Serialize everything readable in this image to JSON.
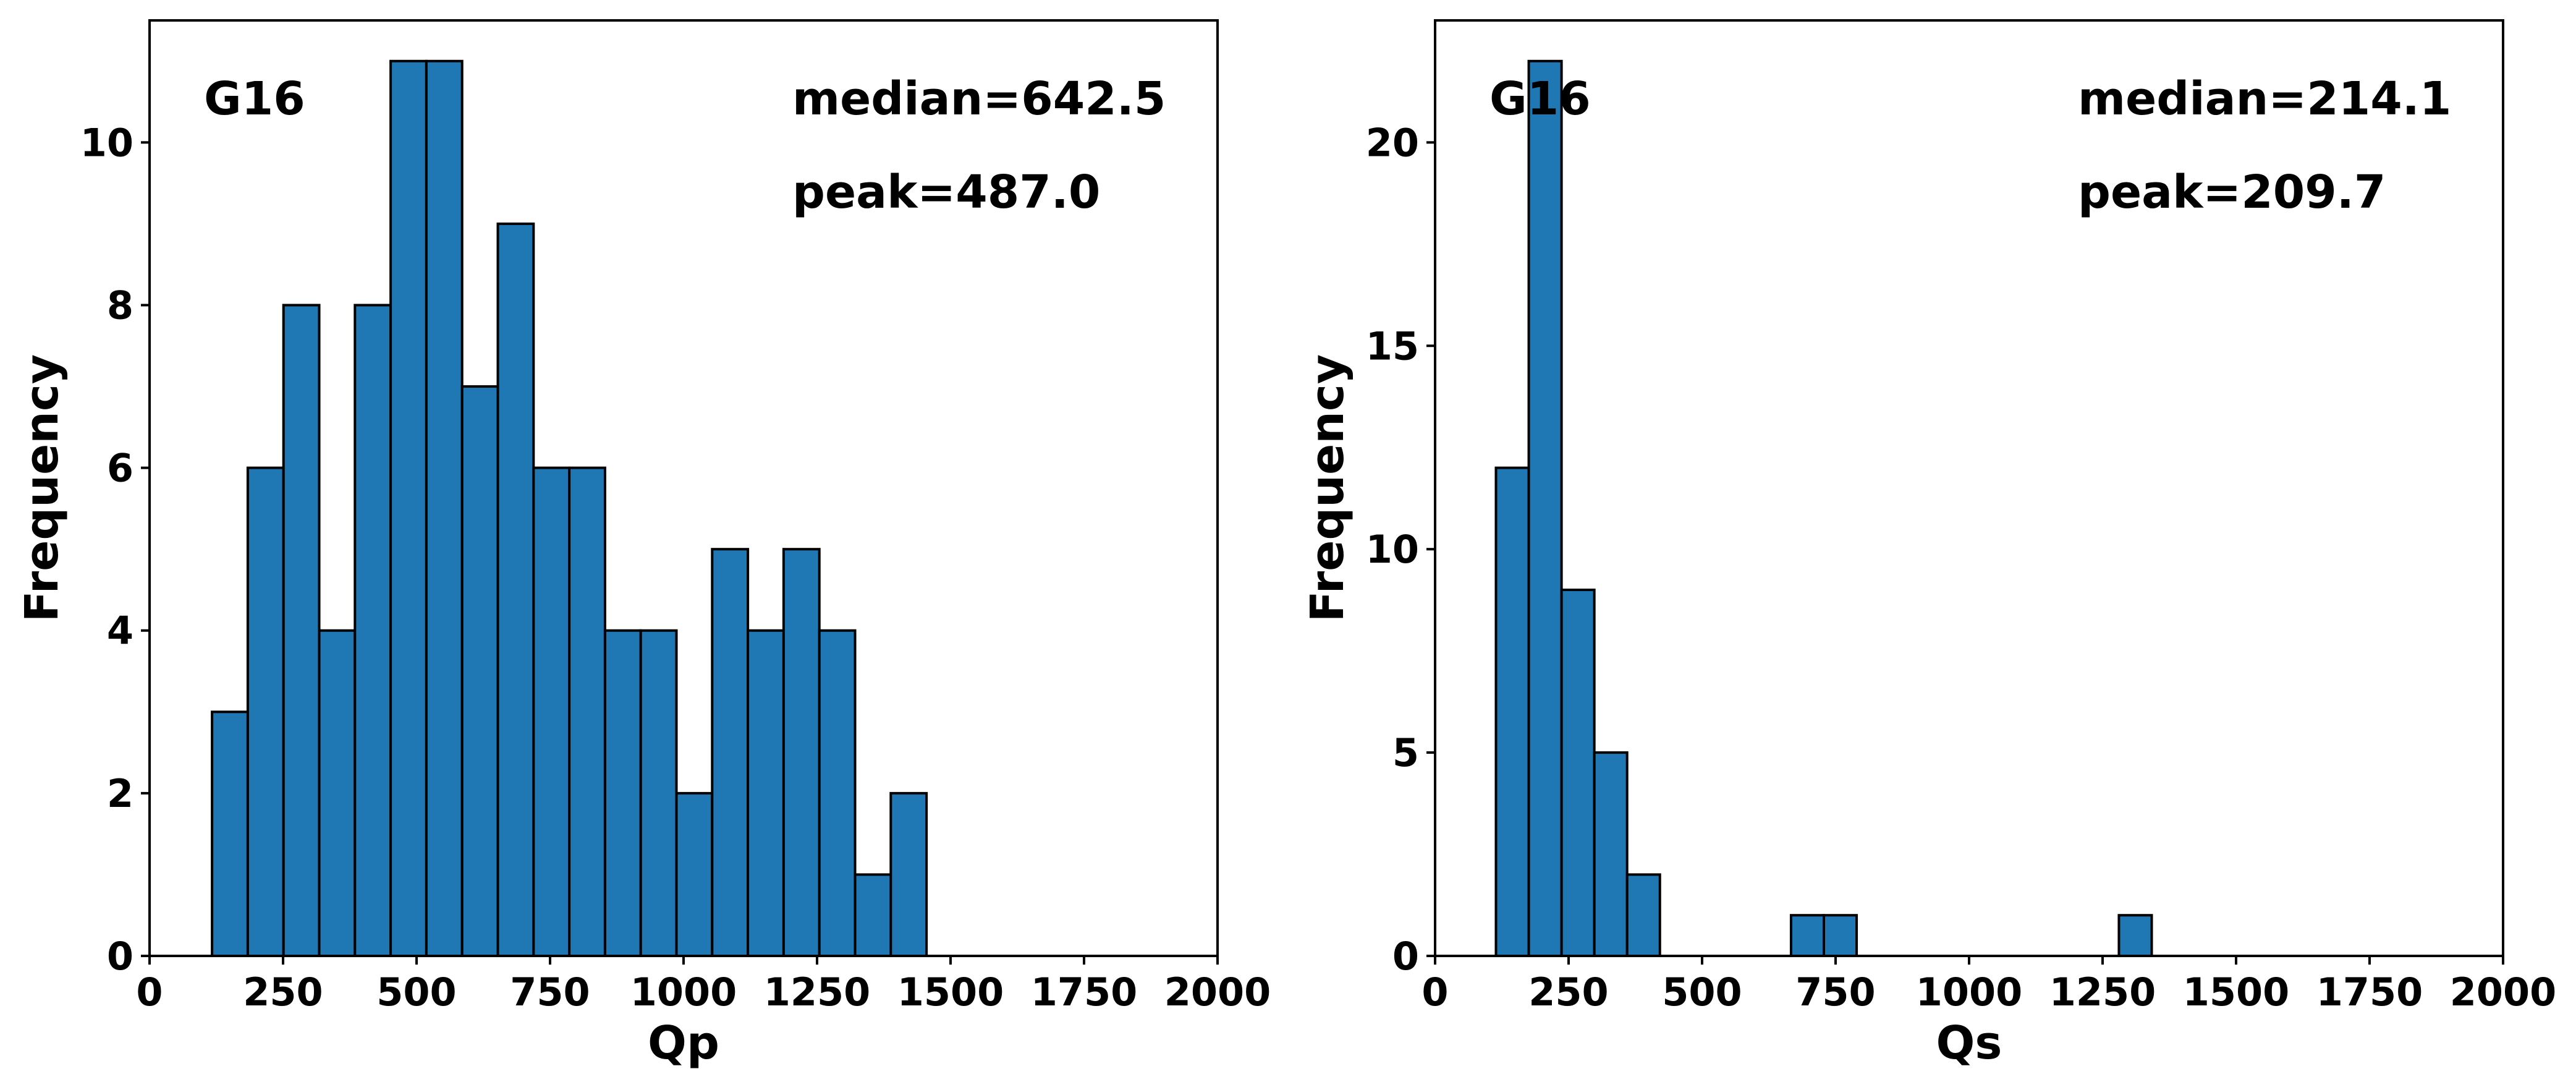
{
  "chart_data": [
    {
      "type": "bar",
      "histogram": true,
      "title": "",
      "xlabel": "Qp",
      "ylabel": "Frequency",
      "xlim": [
        0,
        2000
      ],
      "ylim": [
        0,
        11.5
      ],
      "xticks": [
        0,
        250,
        500,
        750,
        1000,
        1250,
        1500,
        1750,
        2000
      ],
      "yticks": [
        0,
        2,
        4,
        6,
        8,
        10
      ],
      "grid": false,
      "bar_color": "#1f77b4",
      "edge_color": "#000000",
      "bin_start": 117,
      "bin_width": 66.9,
      "values": [
        3,
        6,
        8,
        4,
        8,
        11,
        11,
        7,
        9,
        6,
        6,
        4,
        4,
        2,
        5,
        4,
        5,
        4,
        1,
        2
      ],
      "annotations": {
        "group": "G16",
        "median": "median=642.5",
        "peak": "peak=487.0"
      }
    },
    {
      "type": "bar",
      "histogram": true,
      "title": "",
      "xlabel": "Qs",
      "ylabel": "Frequency",
      "xlim": [
        0,
        2000
      ],
      "ylim": [
        0,
        23
      ],
      "xticks": [
        0,
        250,
        500,
        750,
        1000,
        1250,
        1500,
        1750,
        2000
      ],
      "yticks": [
        0,
        5,
        10,
        15,
        20
      ],
      "grid": false,
      "bar_color": "#1f77b4",
      "edge_color": "#000000",
      "bin_start": 114,
      "bin_width": 61.4,
      "values": [
        12,
        22,
        9,
        5,
        2,
        0,
        0,
        0,
        0,
        1,
        1,
        0,
        0,
        0,
        0,
        0,
        0,
        0,
        0,
        1
      ],
      "annotations": {
        "group": "G16",
        "median": "median=214.1",
        "peak": "peak=209.7"
      }
    }
  ]
}
